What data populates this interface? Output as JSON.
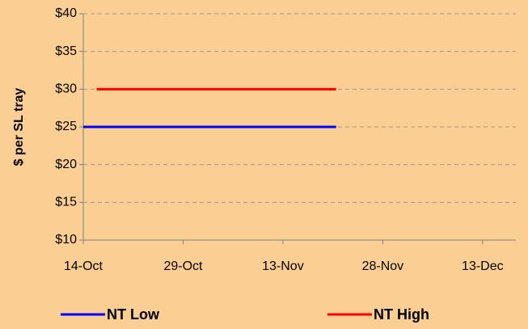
{
  "chart_data": {
    "type": "line",
    "y_label": "$ per SL tray",
    "x": [
      "14-Oct",
      "16-Oct",
      "21-Nov"
    ],
    "series": [
      {
        "name": "NT Low",
        "color": "#0000ff",
        "values": [
          25,
          25,
          25
        ]
      },
      {
        "name": "NT High",
        "color": "#ff0000",
        "values": [
          null,
          30,
          30
        ]
      }
    ],
    "xlim": [
      "14-Oct",
      "18-Dec"
    ],
    "xticks": [
      "14-Oct",
      "29-Oct",
      "13-Nov",
      "28-Nov",
      "13-Dec"
    ],
    "ylim": [
      10,
      40
    ],
    "yticks": [
      {
        "value": 10,
        "label": "$10"
      },
      {
        "value": 15,
        "label": "$15"
      },
      {
        "value": 20,
        "label": "$20"
      },
      {
        "value": 25,
        "label": "$25"
      },
      {
        "value": 30,
        "label": "$30"
      },
      {
        "value": 35,
        "label": "$35"
      },
      {
        "value": 40,
        "label": "$40"
      }
    ],
    "grid": true,
    "legend": "bottom"
  }
}
